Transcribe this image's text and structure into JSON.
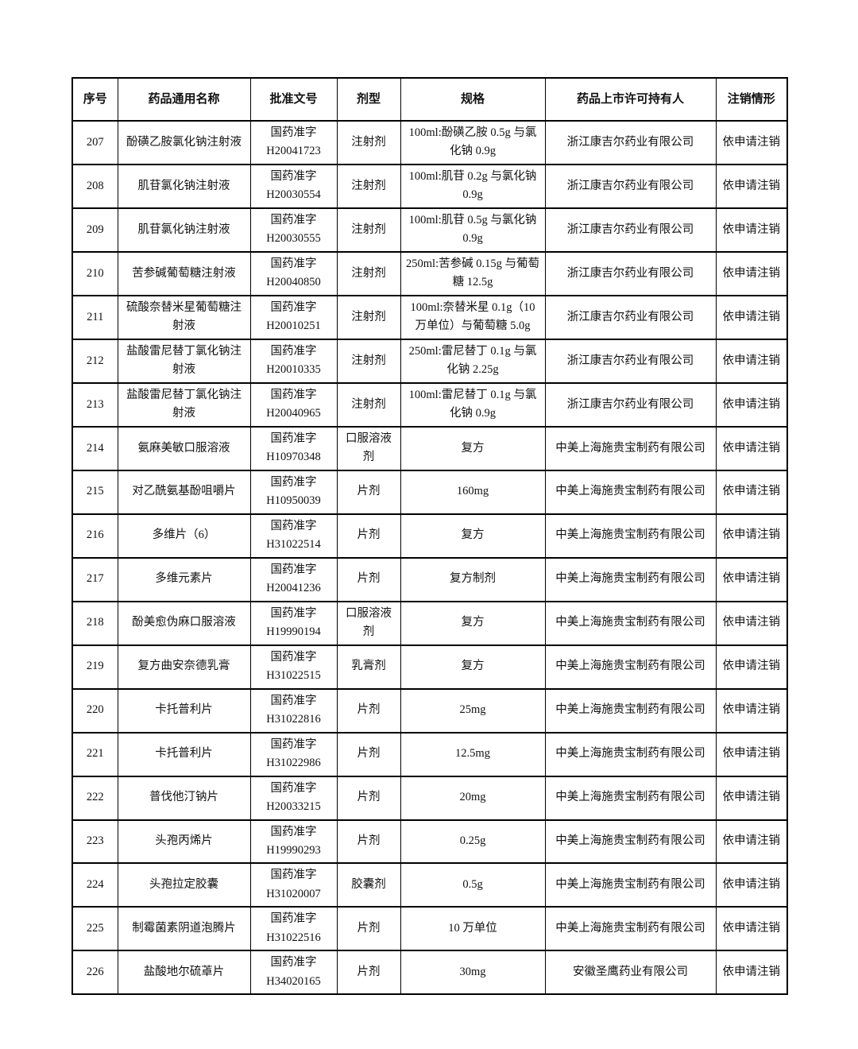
{
  "page": {
    "background_color": "#ffffff",
    "text_color": "#111111",
    "border_color": "#000000"
  },
  "table": {
    "columns": [
      "序号",
      "药品通用名称",
      "批准文号",
      "剂型",
      "规格",
      "药品上市许可持有人",
      "注销情形"
    ],
    "rows": [
      {
        "no": "207",
        "name": "酚磺乙胺氯化钠注射液",
        "approval": "国药准字\nH20041723",
        "form": "注射剂",
        "spec": "100ml:酚磺乙胺 0.5g 与氯化钠 0.9g",
        "holder": "浙江康吉尔药业有限公司",
        "status": "依申请注销"
      },
      {
        "no": "208",
        "name": "肌苷氯化钠注射液",
        "approval": "国药准字\nH20030554",
        "form": "注射剂",
        "spec": "100ml:肌苷 0.2g 与氯化钠 0.9g",
        "holder": "浙江康吉尔药业有限公司",
        "status": "依申请注销"
      },
      {
        "no": "209",
        "name": "肌苷氯化钠注射液",
        "approval": "国药准字\nH20030555",
        "form": "注射剂",
        "spec": "100ml:肌苷 0.5g 与氯化钠 0.9g",
        "holder": "浙江康吉尔药业有限公司",
        "status": "依申请注销"
      },
      {
        "no": "210",
        "name": "苦参碱葡萄糖注射液",
        "approval": "国药准字\nH20040850",
        "form": "注射剂",
        "spec": "250ml:苦参碱 0.15g 与葡萄糖 12.5g",
        "holder": "浙江康吉尔药业有限公司",
        "status": "依申请注销"
      },
      {
        "no": "211",
        "name": "硫酸奈替米星葡萄糖注射液",
        "approval": "国药准字\nH20010251",
        "form": "注射剂",
        "spec": "100ml:奈替米星 0.1g（10 万单位）与葡萄糖 5.0g",
        "holder": "浙江康吉尔药业有限公司",
        "status": "依申请注销"
      },
      {
        "no": "212",
        "name": "盐酸雷尼替丁氯化钠注射液",
        "approval": "国药准字\nH20010335",
        "form": "注射剂",
        "spec": "250ml:雷尼替丁 0.1g 与氯化钠 2.25g",
        "holder": "浙江康吉尔药业有限公司",
        "status": "依申请注销"
      },
      {
        "no": "213",
        "name": "盐酸雷尼替丁氯化钠注射液",
        "approval": "国药准字\nH20040965",
        "form": "注射剂",
        "spec": "100ml:雷尼替丁 0.1g 与氯化钠 0.9g",
        "holder": "浙江康吉尔药业有限公司",
        "status": "依申请注销"
      },
      {
        "no": "214",
        "name": "氨麻美敏口服溶液",
        "approval": "国药准字\nH10970348",
        "form": "口服溶液剂",
        "spec": "复方",
        "holder": "中美上海施贵宝制药有限公司",
        "status": "依申请注销"
      },
      {
        "no": "215",
        "name": "对乙酰氨基酚咀嚼片",
        "approval": "国药准字\nH10950039",
        "form": "片剂",
        "spec": "160mg",
        "holder": "中美上海施贵宝制药有限公司",
        "status": "依申请注销"
      },
      {
        "no": "216",
        "name": "多维片（6）",
        "approval": "国药准字\nH31022514",
        "form": "片剂",
        "spec": "复方",
        "holder": "中美上海施贵宝制药有限公司",
        "status": "依申请注销"
      },
      {
        "no": "217",
        "name": "多维元素片",
        "approval": "国药准字\nH20041236",
        "form": "片剂",
        "spec": "复方制剂",
        "holder": "中美上海施贵宝制药有限公司",
        "status": "依申请注销"
      },
      {
        "no": "218",
        "name": "酚美愈伪麻口服溶液",
        "approval": "国药准字\nH19990194",
        "form": "口服溶液剂",
        "spec": "复方",
        "holder": "中美上海施贵宝制药有限公司",
        "status": "依申请注销"
      },
      {
        "no": "219",
        "name": "复方曲安奈德乳膏",
        "approval": "国药准字\nH31022515",
        "form": "乳膏剂",
        "spec": "复方",
        "holder": "中美上海施贵宝制药有限公司",
        "status": "依申请注销"
      },
      {
        "no": "220",
        "name": "卡托普利片",
        "approval": "国药准字\nH31022816",
        "form": "片剂",
        "spec": "25mg",
        "holder": "中美上海施贵宝制药有限公司",
        "status": "依申请注销"
      },
      {
        "no": "221",
        "name": "卡托普利片",
        "approval": "国药准字\nH31022986",
        "form": "片剂",
        "spec": "12.5mg",
        "holder": "中美上海施贵宝制药有限公司",
        "status": "依申请注销"
      },
      {
        "no": "222",
        "name": "普伐他汀钠片",
        "approval": "国药准字\nH20033215",
        "form": "片剂",
        "spec": "20mg",
        "holder": "中美上海施贵宝制药有限公司",
        "status": "依申请注销"
      },
      {
        "no": "223",
        "name": "头孢丙烯片",
        "approval": "国药准字\nH19990293",
        "form": "片剂",
        "spec": "0.25g",
        "holder": "中美上海施贵宝制药有限公司",
        "status": "依申请注销"
      },
      {
        "no": "224",
        "name": "头孢拉定胶囊",
        "approval": "国药准字\nH31020007",
        "form": "胶囊剂",
        "spec": "0.5g",
        "holder": "中美上海施贵宝制药有限公司",
        "status": "依申请注销"
      },
      {
        "no": "225",
        "name": "制霉菌素阴道泡腾片",
        "approval": "国药准字\nH31022516",
        "form": "片剂",
        "spec": "10 万单位",
        "holder": "中美上海施贵宝制药有限公司",
        "status": "依申请注销"
      },
      {
        "no": "226",
        "name": "盐酸地尔硫䓬片",
        "approval": "国药准字\nH34020165",
        "form": "片剂",
        "spec": "30mg",
        "holder": "安徽圣鹰药业有限公司",
        "status": "依申请注销"
      }
    ]
  }
}
